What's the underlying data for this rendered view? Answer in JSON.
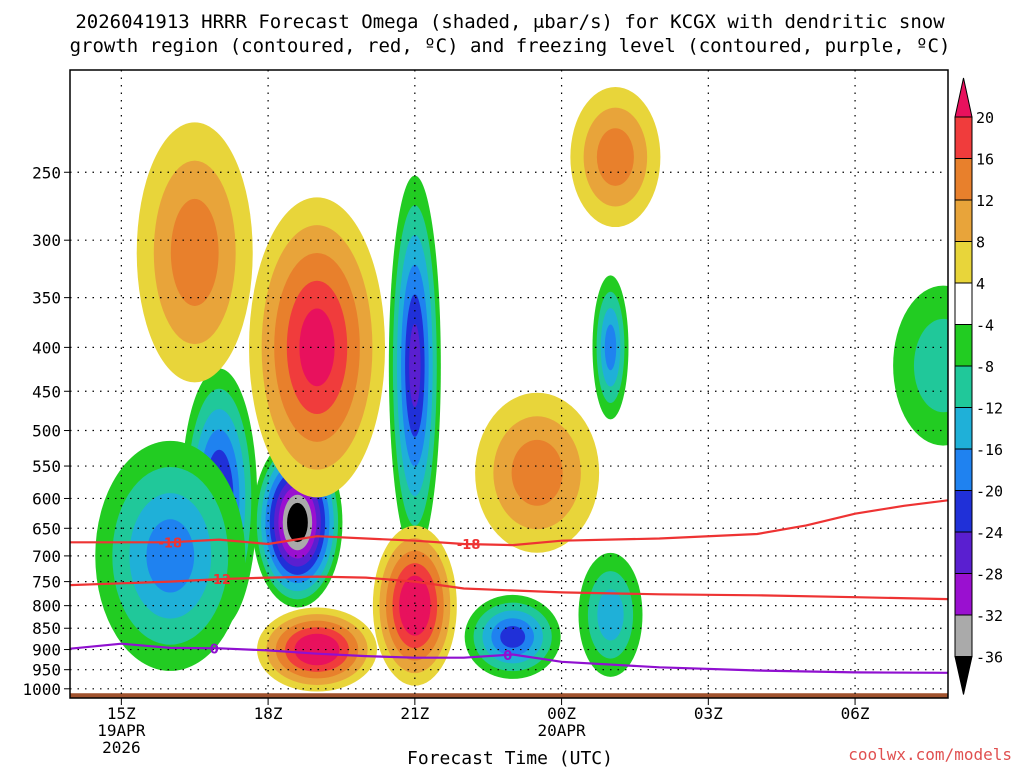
{
  "chart_data": {
    "type": "heatmap",
    "title_lines": [
      "2026041913 HRRR Forecast Omega (shaded, μbar/s) for KCGX with dendritic snow",
      "growth region (contoured, red, ºC) and freezing level (contoured, purple, ºC)"
    ],
    "xlabel": "Forecast Time (UTC)",
    "ylabel": "",
    "credit": "coolwx.com/models",
    "x_axis": {
      "unit": "hours since 19APR 12Z",
      "range": [
        1.95,
        19.9
      ],
      "ticks": [
        {
          "hour": 3,
          "lines": [
            "15Z",
            "19APR",
            "2026"
          ]
        },
        {
          "hour": 6,
          "lines": [
            "18Z"
          ]
        },
        {
          "hour": 9,
          "lines": [
            "21Z"
          ]
        },
        {
          "hour": 12,
          "lines": [
            "00Z",
            "20APR"
          ]
        },
        {
          "hour": 15,
          "lines": [
            "03Z"
          ]
        },
        {
          "hour": 18,
          "lines": [
            "06Z"
          ]
        }
      ]
    },
    "y_axis": {
      "unit": "hPa",
      "scale": "log",
      "range": [
        1025,
        190
      ],
      "ticks": [
        250,
        300,
        350,
        400,
        450,
        500,
        550,
        600,
        650,
        700,
        750,
        800,
        850,
        900,
        950,
        1000
      ],
      "grid": true
    },
    "colorbar": {
      "unit": "μbar/s",
      "labels": [
        "20",
        "16",
        "12",
        "8",
        "4",
        "-4",
        "-8",
        "-12",
        "-16",
        "-20",
        "-24",
        "-28",
        "-32",
        "-36"
      ],
      "levels": [
        20,
        16,
        12,
        8,
        4,
        -4,
        -8,
        -12,
        -16,
        -20,
        -24,
        -28,
        -32,
        -36
      ],
      "colors": [
        "#e8115d",
        "#f03c3c",
        "#e8802c",
        "#e8a43a",
        "#e8d53a",
        "#ffffff",
        "#22cc22",
        "#20c89a",
        "#1fb0d8",
        "#1f82f0",
        "#2030d8",
        "#5a1fd0",
        "#9a10d0",
        "#aaaaaa",
        "#000000"
      ]
    },
    "fields": [
      {
        "name": "ascent-core-18z",
        "hour": 6.6,
        "p": 640,
        "value": -40
      },
      {
        "name": "ascent-21z-column",
        "hour": 9.0,
        "p": 420,
        "value": -24
      },
      {
        "name": "ascent-17z",
        "hour": 5.0,
        "p": 600,
        "value": -24
      },
      {
        "name": "ascent-16z",
        "hour": 4.0,
        "p": 700,
        "value": -16
      },
      {
        "name": "ascent-lower-23z",
        "hour": 11.0,
        "p": 870,
        "value": -20
      },
      {
        "name": "ascent-01z",
        "hour": 13.0,
        "p": 400,
        "value": -16
      },
      {
        "name": "ascent-01z-low",
        "hour": 13.0,
        "p": 820,
        "value": -12
      },
      {
        "name": "ascent-07z",
        "hour": 19.8,
        "p": 420,
        "value": -8
      },
      {
        "name": "descent-19z-upper",
        "hour": 7.0,
        "p": 400,
        "value": 20
      },
      {
        "name": "descent-15z-upper",
        "hour": 4.5,
        "p": 310,
        "value": 12
      },
      {
        "name": "descent-21z-low",
        "hour": 9.0,
        "p": 800,
        "value": 24
      },
      {
        "name": "descent-18z-low",
        "hour": 7.0,
        "p": 900,
        "value": 24
      },
      {
        "name": "descent-23z-mid",
        "hour": 11.5,
        "p": 560,
        "value": 12
      },
      {
        "name": "descent-01z-upper",
        "hour": 13.1,
        "p": 240,
        "value": 12
      }
    ],
    "contours": [
      {
        "name": "dgz-minus-18",
        "color": "#ee3333",
        "label": "-18",
        "points": [
          [
            1.95,
            675
          ],
          [
            4,
            675
          ],
          [
            5,
            670
          ],
          [
            6,
            678
          ],
          [
            7,
            664
          ],
          [
            8,
            668
          ],
          [
            9,
            672
          ],
          [
            10,
            678
          ],
          [
            11,
            680
          ],
          [
            12,
            672
          ],
          [
            14,
            668
          ],
          [
            16,
            660
          ],
          [
            17,
            645
          ],
          [
            18,
            625
          ],
          [
            19,
            612
          ],
          [
            19.9,
            603
          ]
        ],
        "labels": [
          {
            "hour": 4.0,
            "text": "-18"
          },
          {
            "hour": 10.1,
            "text": "-18"
          }
        ]
      },
      {
        "name": "dgz-minus-12",
        "color": "#ee3333",
        "label": "-12",
        "points": [
          [
            1.95,
            757
          ],
          [
            4,
            750
          ],
          [
            5,
            745
          ],
          [
            6,
            742
          ],
          [
            7,
            740
          ],
          [
            8,
            742
          ],
          [
            9,
            750
          ],
          [
            10,
            764
          ],
          [
            12,
            772
          ],
          [
            14,
            776
          ],
          [
            16,
            778
          ],
          [
            18,
            782
          ],
          [
            19.9,
            786
          ]
        ],
        "labels": [
          {
            "hour": 5.0,
            "text": "-12"
          }
        ]
      },
      {
        "name": "freezing-level-0c",
        "color": "#9010d0",
        "label": "0",
        "points": [
          [
            1.95,
            898
          ],
          [
            3,
            886
          ],
          [
            4,
            896
          ],
          [
            5,
            897
          ],
          [
            6,
            902
          ],
          [
            7,
            910
          ],
          [
            8,
            916
          ],
          [
            9,
            920
          ],
          [
            10,
            920
          ],
          [
            11,
            912
          ],
          [
            12,
            930
          ],
          [
            14,
            944
          ],
          [
            16,
            952
          ],
          [
            18,
            957
          ],
          [
            19.9,
            958
          ]
        ],
        "labels": [
          {
            "hour": 4.9,
            "text": "0"
          },
          {
            "hour": 10.9,
            "text": "0"
          }
        ]
      }
    ],
    "terrain": {
      "p_top": 1012,
      "color": "#a0522d"
    }
  }
}
